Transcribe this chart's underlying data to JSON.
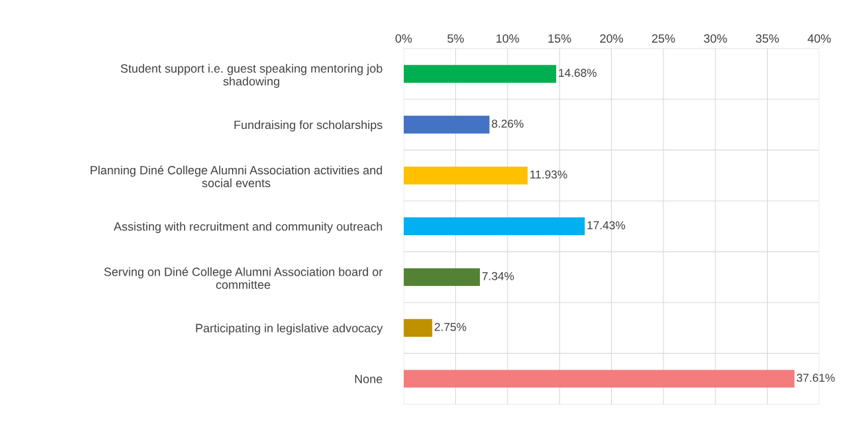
{
  "chart_data": {
    "type": "bar",
    "orientation": "horizontal",
    "categories": [
      "Student support i.e. guest speaking mentoring job shadowing",
      "Fundraising for scholarships",
      "Planning Diné College Alumni Association activities and social events",
      "Assisting with recruitment and community outreach",
      "Serving on Diné College Alumni Association board or committee",
      "Participating in legislative advocacy",
      "None"
    ],
    "values": [
      14.68,
      8.26,
      11.93,
      17.43,
      7.34,
      2.75,
      37.61
    ],
    "colors": [
      "#00b050",
      "#4472c4",
      "#ffc000",
      "#00b0f0",
      "#548235",
      "#bf9000",
      "#f47c7c"
    ],
    "value_labels": [
      "14.68%",
      "8.26%",
      "11.93%",
      "17.43%",
      "7.34%",
      "2.75%",
      "37.61%"
    ],
    "xlim": [
      0,
      40
    ],
    "xticks": [
      {
        "value": 0,
        "label": "0%"
      },
      {
        "value": 5,
        "label": "5%"
      },
      {
        "value": 10,
        "label": "10%"
      },
      {
        "value": 15,
        "label": "15%"
      },
      {
        "value": 20,
        "label": "20%"
      },
      {
        "value": 25,
        "label": "25%"
      },
      {
        "value": 30,
        "label": "30%"
      },
      {
        "value": 35,
        "label": "35%"
      },
      {
        "value": 40,
        "label": "40%"
      }
    ],
    "grid": true,
    "legend": false
  }
}
